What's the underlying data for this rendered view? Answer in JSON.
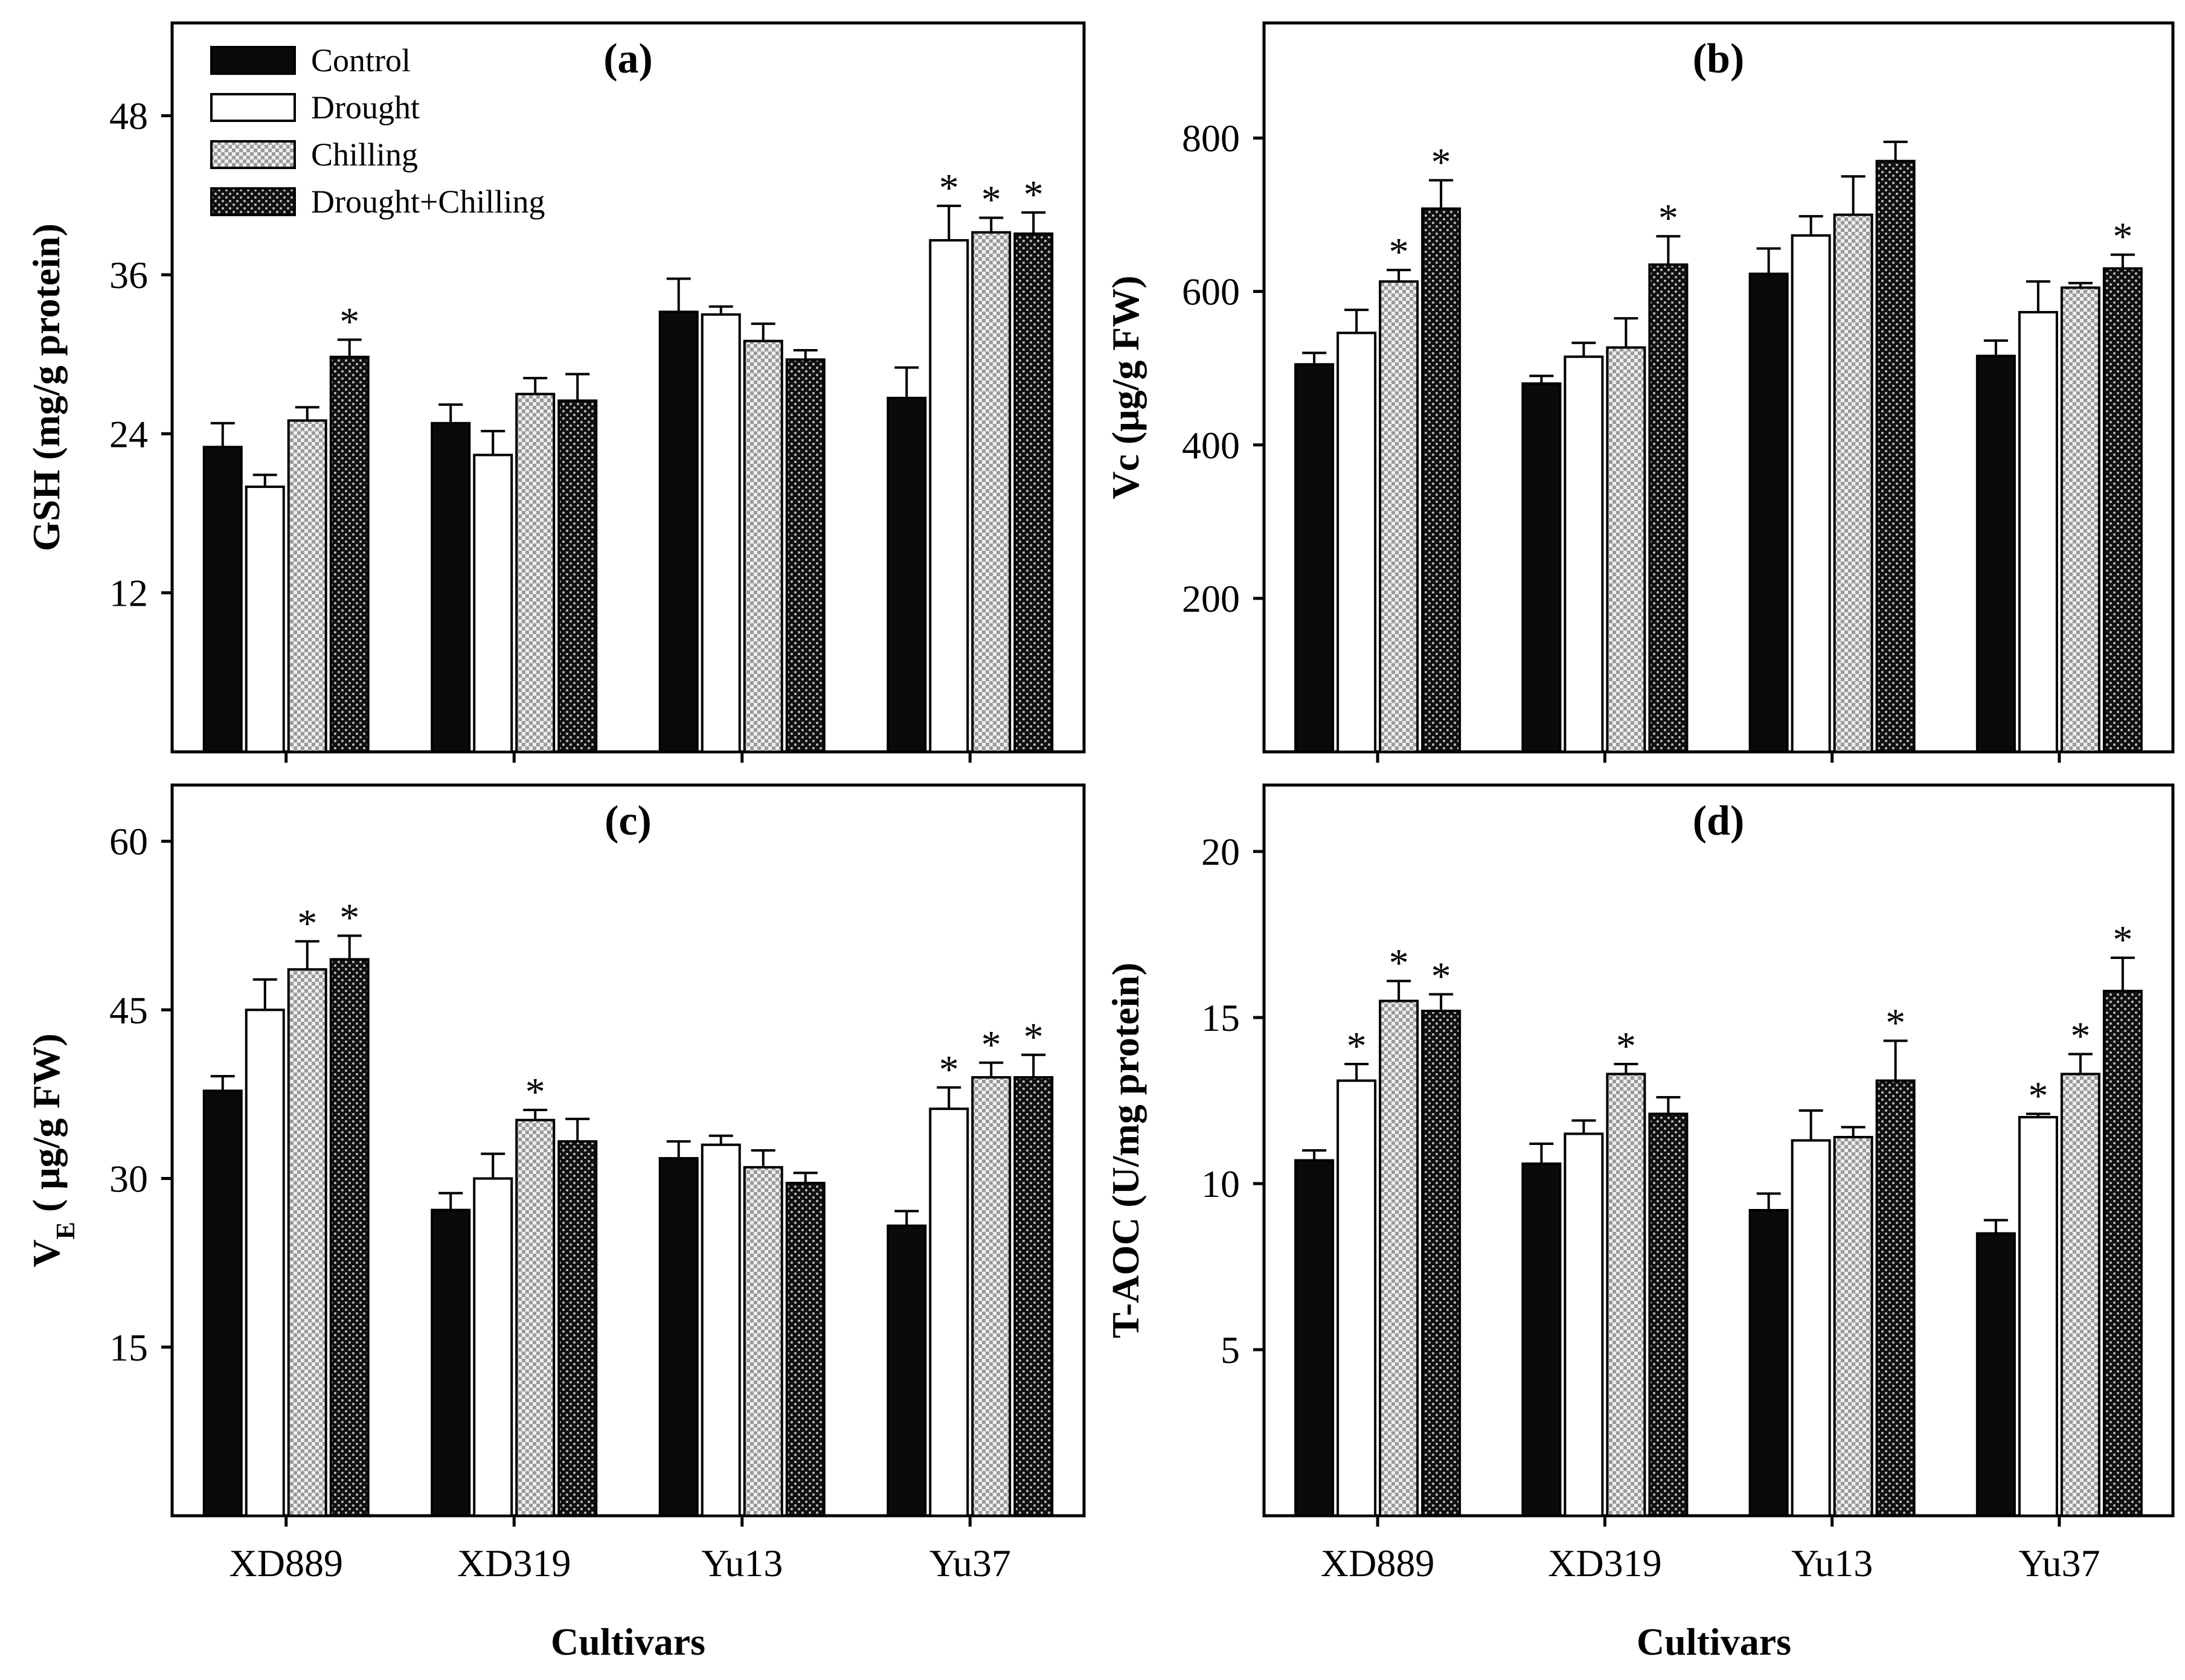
{
  "legend": [
    {
      "label": "Control",
      "fill": "solid"
    },
    {
      "label": "Drought",
      "fill": "open"
    },
    {
      "label": "Chilling",
      "fill": "grid"
    },
    {
      "label": "Drought+Chilling",
      "fill": "dots"
    }
  ],
  "xlabel": "Cultivars",
  "chart_data": [
    {
      "panel": "(a)",
      "type": "bar",
      "ylabel": "GSH (mg/g protein)",
      "ylim": [
        0,
        55
      ],
      "yticks": [
        12,
        24,
        36,
        48
      ],
      "categories": [
        "XD889",
        "XD319",
        "Yu13",
        "Yu37"
      ],
      "show_xtick_labels": false,
      "series": [
        {
          "name": "Control",
          "values": [
            23.0,
            24.8,
            33.2,
            26.7
          ],
          "errors": [
            1.8,
            1.4,
            2.5,
            2.3
          ],
          "sig": [
            false,
            false,
            false,
            false
          ]
        },
        {
          "name": "Drought",
          "values": [
            20.0,
            22.4,
            33.0,
            38.6
          ],
          "errors": [
            0.9,
            1.8,
            0.6,
            2.6
          ],
          "sig": [
            false,
            false,
            false,
            true
          ]
        },
        {
          "name": "Chilling",
          "values": [
            25.0,
            27.0,
            31.0,
            39.2
          ],
          "errors": [
            1.0,
            1.2,
            1.3,
            1.1
          ],
          "sig": [
            false,
            false,
            false,
            true
          ]
        },
        {
          "name": "Drought+Chilling",
          "values": [
            29.8,
            26.5,
            29.6,
            39.1
          ],
          "errors": [
            1.3,
            2.0,
            0.7,
            1.6
          ],
          "sig": [
            true,
            false,
            false,
            true
          ]
        }
      ]
    },
    {
      "panel": "(b)",
      "type": "bar",
      "ylabel": "Vc (μg/g FW)",
      "ylim": [
        0,
        950
      ],
      "yticks": [
        200,
        400,
        600,
        800
      ],
      "categories": [
        "XD889",
        "XD319",
        "Yu13",
        "Yu37"
      ],
      "show_xtick_labels": false,
      "series": [
        {
          "name": "Control",
          "values": [
            505,
            480,
            623,
            516
          ],
          "errors": [
            15,
            10,
            33,
            20
          ],
          "sig": [
            false,
            false,
            false,
            false
          ]
        },
        {
          "name": "Drought",
          "values": [
            546,
            515,
            673,
            573
          ],
          "errors": [
            30,
            18,
            25,
            40
          ],
          "sig": [
            false,
            false,
            false,
            false
          ]
        },
        {
          "name": "Chilling",
          "values": [
            613,
            527,
            700,
            605
          ],
          "errors": [
            15,
            38,
            50,
            6
          ],
          "sig": [
            true,
            false,
            false,
            false
          ]
        },
        {
          "name": "Drought+Chilling",
          "values": [
            708,
            635,
            770,
            630
          ],
          "errors": [
            37,
            37,
            25,
            18
          ],
          "sig": [
            true,
            true,
            false,
            true
          ]
        }
      ]
    },
    {
      "panel": "(c)",
      "type": "bar",
      "ylabel": "V",
      "ylabel_sub": "E",
      "ylabel_rest": "( μg/g FW)",
      "ylim": [
        0,
        65
      ],
      "yticks": [
        15,
        30,
        45,
        60
      ],
      "categories": [
        "XD889",
        "XD319",
        "Yu13",
        "Yu37"
      ],
      "show_xtick_labels": true,
      "series": [
        {
          "name": "Control",
          "values": [
            37.8,
            27.2,
            31.8,
            25.8
          ],
          "errors": [
            1.3,
            1.5,
            1.5,
            1.3
          ],
          "sig": [
            false,
            false,
            false,
            false
          ]
        },
        {
          "name": "Drought",
          "values": [
            45.0,
            30.0,
            33.0,
            36.2
          ],
          "errors": [
            2.7,
            2.2,
            0.8,
            1.9
          ],
          "sig": [
            false,
            false,
            false,
            true
          ]
        },
        {
          "name": "Chilling",
          "values": [
            48.6,
            35.2,
            31.0,
            39.0
          ],
          "errors": [
            2.5,
            0.9,
            1.5,
            1.3
          ],
          "sig": [
            true,
            true,
            false,
            true
          ]
        },
        {
          "name": "Drought+Chilling",
          "values": [
            49.5,
            33.3,
            29.6,
            39.0
          ],
          "errors": [
            2.1,
            2.0,
            0.9,
            2.0
          ],
          "sig": [
            true,
            false,
            false,
            true
          ]
        }
      ]
    },
    {
      "panel": "(d)",
      "type": "bar",
      "ylabel": "T-AOC (U/mg protein)",
      "ylim": [
        0,
        22
      ],
      "yticks": [
        5,
        10,
        15,
        20
      ],
      "categories": [
        "XD889",
        "XD319",
        "Yu13",
        "Yu37"
      ],
      "show_xtick_labels": true,
      "series": [
        {
          "name": "Control",
          "values": [
            10.7,
            10.6,
            9.2,
            8.5
          ],
          "errors": [
            0.3,
            0.6,
            0.5,
            0.4
          ],
          "sig": [
            false,
            false,
            false,
            false
          ]
        },
        {
          "name": "Drought",
          "values": [
            13.1,
            11.5,
            11.3,
            12.0
          ],
          "errors": [
            0.5,
            0.4,
            0.9,
            0.1
          ],
          "sig": [
            true,
            false,
            false,
            true
          ]
        },
        {
          "name": "Chilling",
          "values": [
            15.5,
            13.3,
            11.4,
            13.3
          ],
          "errors": [
            0.6,
            0.3,
            0.3,
            0.6
          ],
          "sig": [
            true,
            true,
            false,
            true
          ]
        },
        {
          "name": "Drought+Chilling",
          "values": [
            15.2,
            12.1,
            13.1,
            15.8
          ],
          "errors": [
            0.5,
            0.5,
            1.2,
            1.0
          ],
          "sig": [
            true,
            false,
            true,
            true
          ]
        }
      ]
    }
  ]
}
